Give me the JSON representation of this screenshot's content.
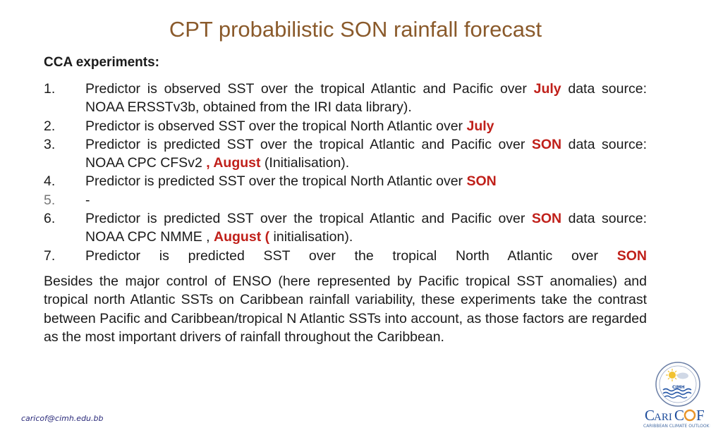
{
  "title": "CPT probabilistic SON rainfall forecast",
  "subtitle": "CCA experiments:",
  "items": [
    {
      "num": "1.",
      "parts": [
        {
          "t": "Predictor is observed SST over the tropical Atlantic and Pacific over "
        },
        {
          "t": "July",
          "hl": true
        },
        {
          "t": " data source: NOAA ERSSTv3b, obtained from the IRI data library)."
        }
      ],
      "justify": true
    },
    {
      "num": "2.",
      "parts": [
        {
          "t": "Predictor is observed SST over the tropical North Atlantic over "
        },
        {
          "t": "July",
          "hl": true
        }
      ]
    },
    {
      "num": "3.",
      "parts": [
        {
          "t": "Predictor is predicted SST over the tropical Atlantic and Pacific over "
        },
        {
          "t": "SON",
          "hl": true
        },
        {
          "t": " data source: NOAA CPC CFSv2 "
        },
        {
          "t": ", August",
          "hl": true
        },
        {
          "t": " (Initialisation)."
        }
      ],
      "justify": true
    },
    {
      "num": "4.",
      "parts": [
        {
          "t": "Predictor is predicted SST over the tropical North Atlantic over "
        },
        {
          "t": "SON",
          "hl": true
        }
      ]
    },
    {
      "num": "5.",
      "muted": true,
      "parts": [
        {
          "t": "-"
        }
      ]
    },
    {
      "num": "6.",
      "parts": [
        {
          "t": "Predictor is predicted SST over the tropical Atlantic and Pacific over "
        },
        {
          "t": "SON",
          "hl": true
        },
        {
          "t": " data source: NOAA CPC NMME , "
        },
        {
          "t": "August (",
          "hl": true
        },
        {
          "t": " initialisation)."
        }
      ],
      "justify": true
    },
    {
      "num": "7.",
      "parts": [
        {
          "t": "Predictor is predicted SST over the tropical North Atlantic over "
        },
        {
          "t": "SON",
          "hl": true
        }
      ],
      "justify": true,
      "justifyLast": true
    }
  ],
  "paragraph": "Besides the major control of ENSO (here represented by Pacific tropical SST anomalies) and tropical north Atlantic SSTs on Caribbean rainfall variability, these experiments take the contrast between Pacific and Caribbean/tropical N Atlantic SSTs into account, as those factors are regarded as the most important drivers of rainfall throughout the Caribbean.",
  "footer": "caricof@cimh.edu.bb",
  "logo": {
    "seal_text": "CIMH",
    "name": "CARICOF",
    "caption": "CARIBBEAN CLIMATE OUTLOOK FORUM"
  },
  "colors": {
    "title": "#8a5a2b",
    "highlight": "#c0201a",
    "logo_blue": "#1f4e9c",
    "logo_orange": "#e8942a"
  }
}
